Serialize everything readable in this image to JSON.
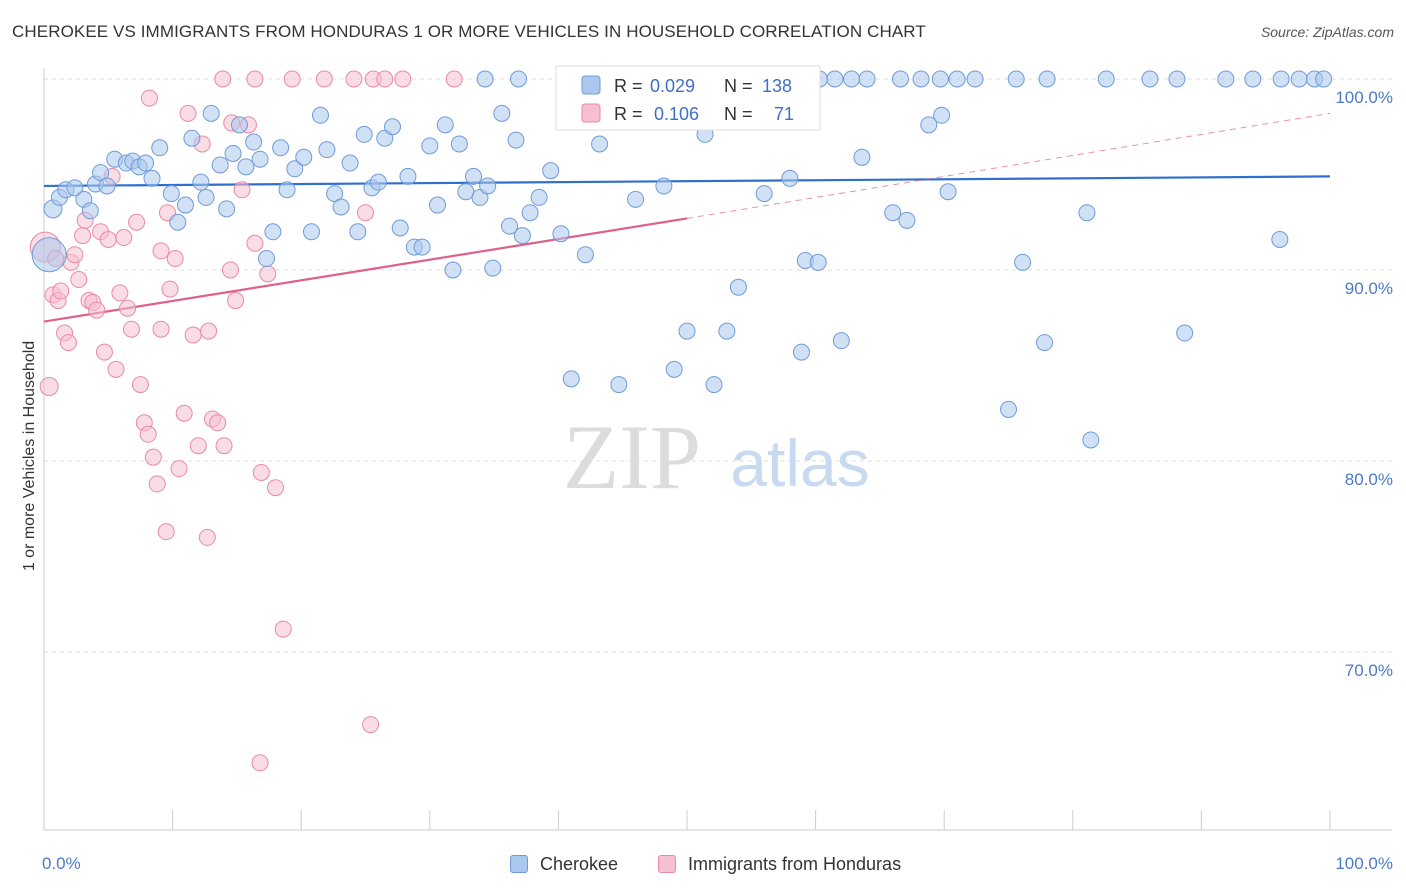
{
  "title": "CHEROKEE VS IMMIGRANTS FROM HONDURAS 1 OR MORE VEHICLES IN HOUSEHOLD CORRELATION CHART",
  "source": "Source: ZipAtlas.com",
  "watermark": {
    "zip": "ZIP",
    "atlas": "atlas"
  },
  "colors": {
    "blue_fill": "#aac8ee",
    "blue_stroke": "#6f9bd8",
    "blue_line": "#2f6fce",
    "pink_fill": "#f6c0d0",
    "pink_stroke": "#e98aa6",
    "pink_line": "#e0608c",
    "grid": "#dddddd",
    "tick_text": "#4a7cc9"
  },
  "legend": {
    "r_label": "R =",
    "n_label": "N =",
    "cherokee_r": "0.029",
    "cherokee_n": "138",
    "honduras_r": "0.106",
    "honduras_n": "71"
  },
  "bottom_legend": {
    "cherokee": "Cherokee",
    "honduras": "Immigrants from Honduras"
  },
  "chart_data": {
    "type": "scatter",
    "ylabel": "1 or more Vehicles in Household",
    "x_tick_labels": [
      "0.0%",
      "100.0%"
    ],
    "y_tick_labels": [
      "70.0%",
      "80.0%",
      "90.0%",
      "100.0%"
    ],
    "xlim": [
      0,
      100
    ],
    "ylim": [
      60.5,
      101.5
    ],
    "series": [
      {
        "name": "Cherokee",
        "R": 0.029,
        "N": 138,
        "trend": {
          "x": [
            0,
            100
          ],
          "y": [
            94.4,
            94.9
          ]
        },
        "points": [
          [
            0.4,
            90.8,
            34
          ],
          [
            0.7,
            93.2,
            18
          ],
          [
            1.2,
            93.8,
            16
          ],
          [
            1.7,
            94.2,
            16
          ],
          [
            2.4,
            94.3,
            16
          ],
          [
            3.1,
            93.7,
            16
          ],
          [
            3.6,
            93.1,
            16
          ],
          [
            4.0,
            94.5,
            16
          ],
          [
            4.4,
            95.1,
            16
          ],
          [
            4.9,
            94.4,
            16
          ],
          [
            5.5,
            95.8,
            16
          ],
          [
            6.4,
            95.6,
            16
          ],
          [
            6.9,
            95.7,
            16
          ],
          [
            7.4,
            95.4,
            16
          ],
          [
            7.9,
            95.6,
            16
          ],
          [
            8.4,
            94.8,
            16
          ],
          [
            9.0,
            96.4,
            16
          ],
          [
            9.9,
            94.0,
            16
          ],
          [
            10.4,
            92.5,
            16
          ],
          [
            11.0,
            93.4,
            16
          ],
          [
            11.5,
            96.9,
            16
          ],
          [
            12.2,
            94.6,
            16
          ],
          [
            12.6,
            93.8,
            16
          ],
          [
            13.0,
            98.2,
            16
          ],
          [
            13.7,
            95.5,
            16
          ],
          [
            14.2,
            93.2,
            16
          ],
          [
            14.7,
            96.1,
            16
          ],
          [
            15.2,
            97.6,
            16
          ],
          [
            15.7,
            95.4,
            16
          ],
          [
            16.3,
            96.7,
            16
          ],
          [
            16.8,
            95.8,
            16
          ],
          [
            17.3,
            90.6,
            16
          ],
          [
            17.8,
            92.0,
            16
          ],
          [
            18.4,
            96.4,
            16
          ],
          [
            18.9,
            94.2,
            16
          ],
          [
            19.5,
            95.3,
            16
          ],
          [
            20.2,
            95.9,
            16
          ],
          [
            20.8,
            92.0,
            16
          ],
          [
            21.5,
            98.1,
            16
          ],
          [
            22.0,
            96.3,
            16
          ],
          [
            22.6,
            94.0,
            16
          ],
          [
            23.1,
            93.3,
            16
          ],
          [
            23.8,
            95.6,
            16
          ],
          [
            24.4,
            92.0,
            16
          ],
          [
            24.9,
            97.1,
            16
          ],
          [
            25.5,
            94.3,
            16
          ],
          [
            26.0,
            94.6,
            16
          ],
          [
            26.5,
            96.9,
            16
          ],
          [
            27.1,
            97.5,
            16
          ],
          [
            27.7,
            92.2,
            16
          ],
          [
            28.3,
            94.9,
            16
          ],
          [
            28.8,
            91.2,
            16
          ],
          [
            29.4,
            91.2,
            16
          ],
          [
            30.0,
            96.5,
            16
          ],
          [
            30.6,
            93.4,
            16
          ],
          [
            31.2,
            97.6,
            16
          ],
          [
            31.8,
            90.0,
            16
          ],
          [
            32.3,
            96.6,
            16
          ],
          [
            32.8,
            94.1,
            16
          ],
          [
            33.4,
            94.9,
            16
          ],
          [
            33.9,
            93.8,
            16
          ],
          [
            34.5,
            94.4,
            16
          ],
          [
            34.9,
            90.1,
            16
          ],
          [
            35.6,
            98.2,
            16
          ],
          [
            36.2,
            92.3,
            16
          ],
          [
            36.7,
            96.8,
            16
          ],
          [
            37.2,
            91.8,
            16
          ],
          [
            37.8,
            93.0,
            16
          ],
          [
            38.5,
            93.8,
            16
          ],
          [
            39.4,
            95.2,
            16
          ],
          [
            40.2,
            91.9,
            16
          ],
          [
            41.0,
            84.3,
            16
          ],
          [
            42.1,
            90.8,
            16
          ],
          [
            43.2,
            96.6,
            16
          ],
          [
            44.7,
            84.0,
            16
          ],
          [
            46.0,
            93.7,
            16
          ],
          [
            47.1,
            97.8,
            16
          ],
          [
            48.2,
            94.4,
            16
          ],
          [
            49.0,
            84.8,
            16
          ],
          [
            50.0,
            86.8,
            16
          ],
          [
            51.4,
            97.1,
            16
          ],
          [
            52.1,
            84.0,
            16
          ],
          [
            53.1,
            86.8,
            16
          ],
          [
            54.0,
            89.1,
            16
          ],
          [
            56.0,
            94.0,
            16
          ],
          [
            58.0,
            94.8,
            16
          ],
          [
            58.9,
            85.7,
            16
          ],
          [
            59.2,
            90.5,
            16
          ],
          [
            60.2,
            90.4,
            16
          ],
          [
            62.0,
            86.3,
            16
          ],
          [
            63.6,
            95.9,
            16
          ],
          [
            66.0,
            93.0,
            16
          ],
          [
            67.1,
            92.6,
            16
          ],
          [
            68.8,
            97.6,
            16
          ],
          [
            69.8,
            98.1,
            16
          ],
          [
            70.3,
            94.1,
            16
          ],
          [
            75.0,
            82.7,
            16
          ],
          [
            76.1,
            90.4,
            16
          ],
          [
            77.8,
            86.2,
            16
          ],
          [
            81.1,
            93.0,
            16
          ],
          [
            81.4,
            81.1,
            16
          ],
          [
            88.7,
            86.7,
            16
          ],
          [
            96.1,
            91.6,
            16
          ],
          [
            34.3,
            100,
            16
          ],
          [
            36.9,
            100,
            16
          ],
          [
            40.5,
            100,
            16
          ],
          [
            46.8,
            100,
            16
          ],
          [
            52.7,
            100,
            16
          ],
          [
            58.6,
            100,
            16
          ],
          [
            59.1,
            100,
            16
          ],
          [
            60.3,
            100,
            16
          ],
          [
            61.5,
            100,
            16
          ],
          [
            62.8,
            100,
            16
          ],
          [
            64.0,
            100,
            16
          ],
          [
            66.6,
            100,
            16
          ],
          [
            68.2,
            100,
            16
          ],
          [
            69.7,
            100,
            16
          ],
          [
            71.0,
            100,
            16
          ],
          [
            72.4,
            100,
            16
          ],
          [
            75.6,
            100,
            16
          ],
          [
            78.0,
            100,
            16
          ],
          [
            82.6,
            100,
            16
          ],
          [
            86.0,
            100,
            16
          ],
          [
            88.1,
            100,
            16
          ],
          [
            91.9,
            100,
            16
          ],
          [
            94.0,
            100,
            16
          ],
          [
            96.2,
            100,
            16
          ],
          [
            97.6,
            100,
            16
          ],
          [
            98.8,
            100,
            16
          ],
          [
            99.5,
            100,
            16
          ]
        ]
      },
      {
        "name": "Immigrants from Honduras",
        "R": 0.106,
        "N": 71,
        "trend_solid": {
          "x": [
            0,
            50
          ],
          "y": [
            87.3,
            92.7
          ]
        },
        "trend_dashed": {
          "x": [
            50,
            100
          ],
          "y": [
            92.7,
            98.2
          ]
        },
        "points": [
          [
            0.1,
            91.2,
            30
          ],
          [
            0.4,
            83.9,
            18
          ],
          [
            0.7,
            88.7,
            16
          ],
          [
            0.9,
            90.6,
            16
          ],
          [
            1.1,
            88.4,
            16
          ],
          [
            1.3,
            88.9,
            16
          ],
          [
            1.6,
            86.7,
            16
          ],
          [
            1.9,
            86.2,
            16
          ],
          [
            2.1,
            90.4,
            16
          ],
          [
            2.4,
            90.8,
            16
          ],
          [
            2.7,
            89.5,
            16
          ],
          [
            3.0,
            91.8,
            16
          ],
          [
            3.2,
            92.6,
            16
          ],
          [
            3.5,
            88.4,
            16
          ],
          [
            3.8,
            88.3,
            16
          ],
          [
            4.1,
            87.9,
            16
          ],
          [
            4.4,
            92.0,
            16
          ],
          [
            4.7,
            85.7,
            16
          ],
          [
            5.0,
            91.6,
            16
          ],
          [
            5.3,
            94.9,
            16
          ],
          [
            5.6,
            84.8,
            16
          ],
          [
            5.9,
            88.8,
            16
          ],
          [
            6.2,
            91.7,
            16
          ],
          [
            6.5,
            88.0,
            16
          ],
          [
            6.8,
            86.9,
            16
          ],
          [
            7.2,
            92.5,
            16
          ],
          [
            7.5,
            84.0,
            16
          ],
          [
            7.8,
            82.0,
            16
          ],
          [
            8.1,
            81.4,
            16
          ],
          [
            8.5,
            80.2,
            16
          ],
          [
            8.8,
            78.8,
            16
          ],
          [
            9.1,
            91.0,
            16
          ],
          [
            9.5,
            76.3,
            16
          ],
          [
            9.8,
            89.0,
            16
          ],
          [
            10.2,
            90.6,
            16
          ],
          [
            10.5,
            79.6,
            16
          ],
          [
            10.9,
            82.5,
            16
          ],
          [
            11.2,
            98.2,
            16
          ],
          [
            11.6,
            86.6,
            16
          ],
          [
            12.0,
            80.8,
            16
          ],
          [
            12.3,
            96.6,
            16
          ],
          [
            12.7,
            76.0,
            16
          ],
          [
            13.1,
            82.2,
            16
          ],
          [
            13.5,
            82.0,
            16
          ],
          [
            14.0,
            80.8,
            16
          ],
          [
            14.5,
            90.0,
            16
          ],
          [
            14.9,
            88.4,
            16
          ],
          [
            15.4,
            94.2,
            16
          ],
          [
            15.9,
            97.6,
            16
          ],
          [
            16.4,
            91.4,
            16
          ],
          [
            16.9,
            79.4,
            16
          ],
          [
            17.4,
            89.8,
            16
          ],
          [
            18.0,
            78.6,
            16
          ],
          [
            18.6,
            71.2,
            16
          ],
          [
            9.1,
            86.9,
            16
          ],
          [
            12.8,
            86.8,
            16
          ],
          [
            14.6,
            97.7,
            16
          ],
          [
            8.2,
            99.0,
            16
          ],
          [
            9.6,
            93.0,
            16
          ],
          [
            13.9,
            100,
            16
          ],
          [
            16.4,
            100,
            16
          ],
          [
            19.3,
            100,
            16
          ],
          [
            21.8,
            100,
            16
          ],
          [
            24.1,
            100,
            16
          ],
          [
            25.6,
            100,
            16
          ],
          [
            26.5,
            100,
            16
          ],
          [
            27.9,
            100,
            16
          ],
          [
            31.9,
            100,
            16
          ],
          [
            25.0,
            93.0,
            16
          ],
          [
            25.4,
            66.2,
            16
          ],
          [
            16.8,
            64.2,
            16
          ]
        ]
      }
    ]
  }
}
